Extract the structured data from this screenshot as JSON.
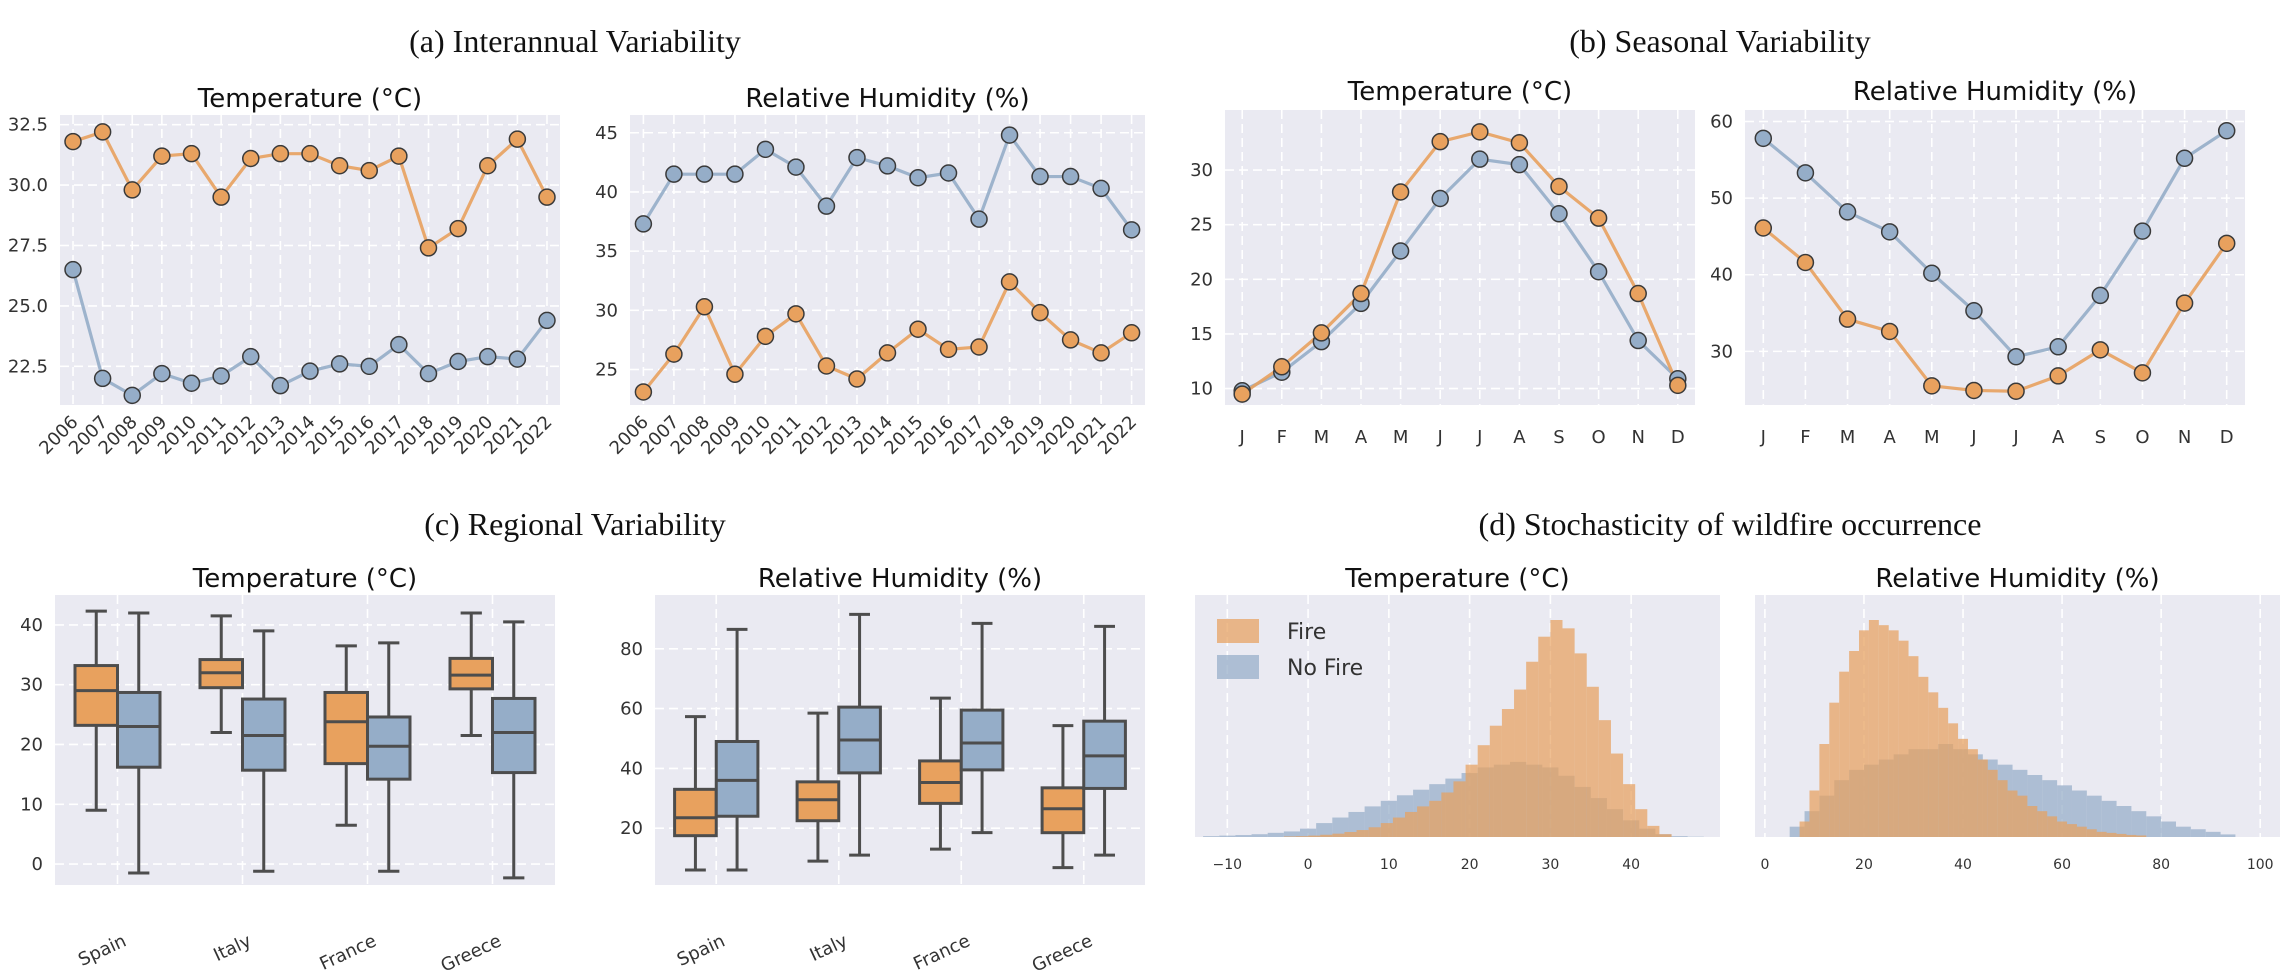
{
  "sections": {
    "a": "(a) Interannual Variability",
    "b": "(b) Seasonal Variability",
    "c": "(c) Regional Variability",
    "d": "(d) Stochasticity of wildfire occurrence"
  },
  "colors": {
    "fire": "#e8a15e",
    "nofire": "#95adc8",
    "bg": "#eaeaf2",
    "grid": "#ffffff",
    "box_line": "#4d4d4d"
  },
  "chart_data": [
    {
      "id": "a_temp",
      "type": "line",
      "title": "Temperature (°C)",
      "categories": [
        "2006",
        "2007",
        "2008",
        "2009",
        "2010",
        "2011",
        "2012",
        "2013",
        "2014",
        "2015",
        "2016",
        "2017",
        "2018",
        "2019",
        "2020",
        "2021",
        "2022"
      ],
      "yticks": [
        "22.5",
        "25.0",
        "27.5",
        "30.0",
        "32.5"
      ],
      "ylim": [
        20.9,
        32.9
      ],
      "series": [
        {
          "key": "nofire",
          "values": [
            26.5,
            22.0,
            21.3,
            22.2,
            21.8,
            22.1,
            22.9,
            21.7,
            22.3,
            22.6,
            22.5,
            23.4,
            22.2,
            22.7,
            22.9,
            22.8,
            24.4
          ]
        },
        {
          "key": "fire",
          "values": [
            31.8,
            32.2,
            29.8,
            31.2,
            31.3,
            29.5,
            31.1,
            31.3,
            31.3,
            30.8,
            30.6,
            31.2,
            27.4,
            28.2,
            30.8,
            31.9,
            29.5
          ]
        }
      ]
    },
    {
      "id": "a_rh",
      "type": "line",
      "title": "Relative Humidity (%)",
      "categories": [
        "2006",
        "2007",
        "2008",
        "2009",
        "2010",
        "2011",
        "2012",
        "2013",
        "2014",
        "2015",
        "2016",
        "2017",
        "2018",
        "2019",
        "2020",
        "2021",
        "2022"
      ],
      "yticks": [
        "25",
        "30",
        "35",
        "40",
        "45"
      ],
      "ylim": [
        22.0,
        46.5
      ],
      "series": [
        {
          "key": "nofire",
          "values": [
            37.3,
            41.5,
            41.5,
            41.5,
            43.6,
            42.1,
            38.8,
            42.9,
            42.2,
            41.2,
            41.6,
            37.7,
            44.8,
            41.3,
            41.3,
            40.3,
            36.8
          ]
        },
        {
          "key": "fire",
          "values": [
            23.1,
            26.3,
            30.3,
            24.6,
            27.8,
            29.7,
            25.3,
            24.2,
            26.4,
            28.4,
            26.7,
            26.9,
            32.4,
            29.8,
            27.5,
            26.4,
            28.1
          ]
        }
      ]
    },
    {
      "id": "b_temp",
      "type": "line",
      "title": "Temperature (°C)",
      "categories": [
        "J",
        "F",
        "M",
        "A",
        "M",
        "J",
        "J",
        "A",
        "S",
        "O",
        "N",
        "D"
      ],
      "yticks": [
        "10",
        "15",
        "20",
        "25",
        "30"
      ],
      "ylim": [
        8.5,
        35.5
      ],
      "series": [
        {
          "key": "nofire",
          "values": [
            9.8,
            11.5,
            14.3,
            17.8,
            22.6,
            27.4,
            31.0,
            30.5,
            26.0,
            20.7,
            14.4,
            10.9
          ]
        },
        {
          "key": "fire",
          "values": [
            9.5,
            12.0,
            15.1,
            18.7,
            28.0,
            32.6,
            33.5,
            32.5,
            28.5,
            25.6,
            18.7,
            10.3
          ]
        }
      ]
    },
    {
      "id": "b_rh",
      "type": "line",
      "title": "Relative Humidity (%)",
      "categories": [
        "J",
        "F",
        "M",
        "A",
        "M",
        "J",
        "J",
        "A",
        "S",
        "O",
        "N",
        "D"
      ],
      "yticks": [
        "30",
        "40",
        "50",
        "60"
      ],
      "ylim": [
        23.0,
        61.5
      ],
      "series": [
        {
          "key": "nofire",
          "values": [
            57.8,
            53.3,
            48.2,
            45.6,
            40.2,
            35.3,
            29.3,
            30.6,
            37.3,
            45.7,
            55.2,
            58.8
          ]
        },
        {
          "key": "fire",
          "values": [
            46.1,
            41.6,
            34.2,
            32.6,
            25.5,
            24.9,
            24.8,
            26.8,
            30.2,
            27.2,
            36.3,
            44.1
          ]
        }
      ]
    },
    {
      "id": "c_temp",
      "type": "box",
      "title": "Temperature (°C)",
      "categories": [
        "Spain",
        "Italy",
        "France",
        "Greece"
      ],
      "yticks": [
        "0",
        "10",
        "20",
        "30",
        "40"
      ],
      "ylim": [
        -3.5,
        45
      ],
      "boxes": [
        {
          "cat": "Spain",
          "key": "fire",
          "whislo": 9,
          "q1": 23.2,
          "med": 29,
          "q3": 33.2,
          "whishi": 42.3
        },
        {
          "cat": "Spain",
          "key": "nofire",
          "whislo": -1.5,
          "q1": 16.2,
          "med": 23,
          "q3": 28.7,
          "whishi": 42
        },
        {
          "cat": "Italy",
          "key": "fire",
          "whislo": 22,
          "q1": 29.5,
          "med": 32,
          "q3": 34.2,
          "whishi": 41.5
        },
        {
          "cat": "Italy",
          "key": "nofire",
          "whislo": -1.2,
          "q1": 15.7,
          "med": 21.5,
          "q3": 27.6,
          "whishi": 39
        },
        {
          "cat": "France",
          "key": "fire",
          "whislo": 6.5,
          "q1": 16.8,
          "med": 23.8,
          "q3": 28.7,
          "whishi": 36.5
        },
        {
          "cat": "France",
          "key": "nofire",
          "whislo": -1.2,
          "q1": 14.2,
          "med": 19.7,
          "q3": 24.6,
          "whishi": 37
        },
        {
          "cat": "Greece",
          "key": "fire",
          "whislo": 21.5,
          "q1": 29.3,
          "med": 31.6,
          "q3": 34.4,
          "whishi": 42
        },
        {
          "cat": "Greece",
          "key": "nofire",
          "whislo": -2.3,
          "q1": 15.3,
          "med": 22,
          "q3": 27.7,
          "whishi": 40.5
        }
      ]
    },
    {
      "id": "c_rh",
      "type": "box",
      "title": "Relative Humidity (%)",
      "categories": [
        "Spain",
        "Italy",
        "France",
        "Greece"
      ],
      "yticks": [
        "20",
        "40",
        "60",
        "80"
      ],
      "ylim": [
        1,
        98
      ],
      "boxes": [
        {
          "cat": "Spain",
          "key": "fire",
          "whislo": 6,
          "q1": 17.5,
          "med": 23.5,
          "q3": 33,
          "whishi": 57.3
        },
        {
          "cat": "Spain",
          "key": "nofire",
          "whislo": 6,
          "q1": 24,
          "med": 36,
          "q3": 49,
          "whishi": 86.5
        },
        {
          "cat": "Italy",
          "key": "fire",
          "whislo": 9,
          "q1": 22.5,
          "med": 29.5,
          "q3": 35.5,
          "whishi": 58.5
        },
        {
          "cat": "Italy",
          "key": "nofire",
          "whislo": 11,
          "q1": 38.5,
          "med": 49.5,
          "q3": 60.5,
          "whishi": 91.5
        },
        {
          "cat": "France",
          "key": "fire",
          "whislo": 13,
          "q1": 28.3,
          "med": 35.3,
          "q3": 42.5,
          "whishi": 63.5
        },
        {
          "cat": "France",
          "key": "nofire",
          "whislo": 18.5,
          "q1": 39.5,
          "med": 48.5,
          "q3": 59.5,
          "whishi": 88.5
        },
        {
          "cat": "Greece",
          "key": "fire",
          "whislo": 6.8,
          "q1": 18.5,
          "med": 26.5,
          "q3": 33.5,
          "whishi": 54.3
        },
        {
          "cat": "Greece",
          "key": "nofire",
          "whislo": 11,
          "q1": 33.3,
          "med": 44.2,
          "q3": 55.8,
          "whishi": 87.5
        }
      ]
    },
    {
      "id": "d_temp",
      "type": "histogram",
      "title": "Temperature (°C)",
      "xticks": [
        "−10",
        "0",
        "10",
        "20",
        "30",
        "40"
      ],
      "xlim": [
        -14,
        51
      ],
      "legend": {
        "fire": "Fire",
        "nofire": "No Fire"
      },
      "series": [
        {
          "key": "nofire",
          "start": -13,
          "width": 2,
          "values": [
            0.3,
            0.5,
            0.7,
            1,
            1.5,
            2,
            3,
            5,
            7,
            9,
            11,
            13,
            15,
            17,
            19,
            21,
            23,
            25,
            26,
            27,
            26,
            25,
            22,
            18,
            14,
            10,
            6,
            3,
            1,
            0.3,
            0.1
          ]
        },
        {
          "key": "fire",
          "start": -3,
          "width": 1.5,
          "values": [
            0.2,
            0.3,
            0.5,
            0.8,
            1.2,
            1.8,
            2.5,
            3.5,
            5,
            7,
            9,
            11,
            13,
            16,
            20,
            26,
            33,
            40,
            46,
            53,
            63,
            72,
            78,
            75,
            66,
            54,
            42,
            30,
            19,
            10,
            4,
            1
          ]
        }
      ]
    },
    {
      "id": "d_rh",
      "type": "histogram",
      "title": "Relative Humidity (%)",
      "xticks": [
        "0",
        "20",
        "40",
        "60",
        "80",
        "100"
      ],
      "xlim": [
        -2,
        104
      ],
      "series": [
        {
          "key": "nofire",
          "start": 5,
          "width": 3,
          "values": [
            2,
            5,
            8,
            11,
            13,
            14,
            15,
            16,
            17,
            17,
            18,
            17,
            16,
            15,
            14,
            13,
            12,
            11,
            10,
            9,
            8,
            7,
            6,
            5,
            4,
            3,
            2,
            1.5,
            1,
            0.5
          ]
        },
        {
          "key": "fire",
          "start": 7,
          "width": 2,
          "values": [
            3,
            9,
            18,
            26,
            32,
            36,
            40,
            42,
            41,
            40,
            38,
            35,
            31,
            28,
            25,
            22,
            19,
            17,
            15,
            13,
            11,
            9,
            8,
            6,
            5,
            4,
            3,
            2.5,
            2,
            1.5,
            1,
            0.8,
            0.6,
            0.4,
            0.3
          ]
        }
      ]
    }
  ]
}
